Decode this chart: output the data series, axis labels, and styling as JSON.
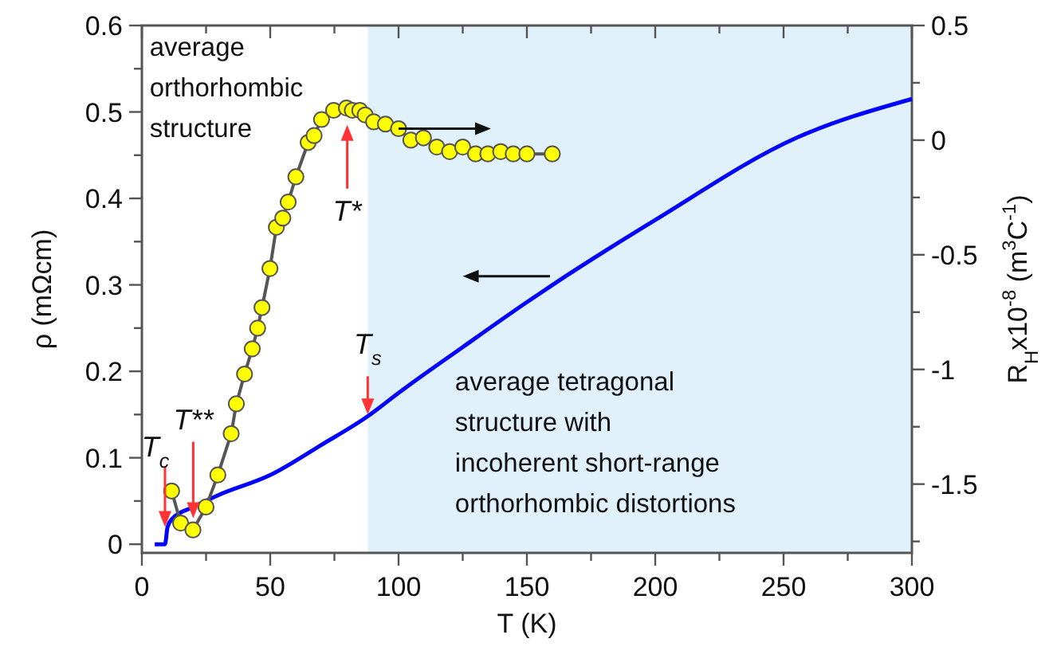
{
  "chart_data": {
    "type": "line",
    "xlabel": "T (K)",
    "ylabel": "ρ (mΩcm)",
    "y2label": "R$_{H}$x10$^{-8}$ (m$^{3}$C$^{-1}$)",
    "xlim": [
      0,
      300
    ],
    "xticks": [
      0,
      {
        "value": 25,
        "label": null
      },
      50,
      {
        "value": 75,
        "label": null
      },
      100,
      {
        "value": 125,
        "label": null
      },
      150,
      {
        "value": 175,
        "label": null
      },
      200,
      {
        "value": 225,
        "label": null
      },
      250,
      {
        "value": 275,
        "label": null
      },
      300
    ],
    "ylim": [
      -0.01,
      0.6
    ],
    "yticks": [
      0,
      {
        "value": 0.05,
        "label": null
      },
      0.1,
      {
        "value": 0.15,
        "label": null
      },
      0.2,
      {
        "value": 0.25,
        "label": null
      },
      0.3,
      {
        "value": 0.35,
        "label": null
      },
      0.4,
      {
        "value": 0.45,
        "label": null
      },
      0.5,
      {
        "value": 0.55,
        "label": null
      },
      0.6
    ],
    "y2lim": [
      -1.8,
      0.5
    ],
    "y2ticks": [
      {
        "value": -1.75,
        "label": null
      },
      -1.5,
      {
        "value": -1.25,
        "label": null
      },
      -1,
      {
        "value": -0.75,
        "label": null
      },
      -0.5,
      {
        "value": -0.25,
        "label": null
      },
      0,
      {
        "value": 0.25,
        "label": null
      },
      0.5
    ],
    "grid": false,
    "series": [
      {
        "color": "#0000ff",
        "marker": "none",
        "x": [
          5,
          9,
          10,
          12,
          20,
          30,
          50,
          70,
          88,
          100,
          125,
          150,
          160,
          200,
          255,
          300
        ],
        "values": [
          0,
          0,
          0.02,
          0.03,
          0.043,
          0.057,
          0.08,
          0.115,
          0.148,
          0.175,
          0.228,
          0.28,
          0.3,
          0.375,
          0.47,
          0.515
        ]
      },
      {
        "axis": "y2",
        "color": "#ffff00",
        "marker": "circle",
        "x": [
          11.6,
          15.1,
          19.9,
          25,
          29.6,
          34.8,
          36.8,
          40,
          43,
          45.1,
          46.8,
          49.9,
          52.4,
          54.9,
          57,
          60,
          64.8,
          67.1,
          70,
          74.7,
          79.7,
          82,
          84.9,
          87,
          90.3,
          94.9,
          100,
          104.8,
          109.7,
          114.9,
          119.9,
          125,
          130,
          134.8,
          139.8,
          144.7,
          150,
          159.9
        ],
        "values": [
          -1.53,
          -1.67,
          -1.7,
          -1.6,
          -1.46,
          -1.28,
          -1.15,
          -1.02,
          -0.91,
          -0.82,
          -0.73,
          -0.56,
          -0.38,
          -0.34,
          -0.27,
          -0.16,
          -0.01,
          0.02,
          0.09,
          0.13,
          0.14,
          0.13,
          0.13,
          0.11,
          0.08,
          0.07,
          0.05,
          0,
          0.01,
          -0.03,
          -0.05,
          -0.03,
          -0.06,
          -0.06,
          -0.05,
          -0.06,
          -0.06,
          -0.06
        ]
      }
    ],
    "bands": [
      {
        "axis": "x",
        "from": 88,
        "to": 300,
        "color": "#e1f1fc"
      }
    ],
    "annotations": [
      "average orthorhombic structure",
      "average tetragonal structure with incoherent short-range orthorhombic distortions",
      {
        "text": "T$_{c}$",
        "x": 9,
        "y": 0.02
      },
      {
        "text": "T**",
        "x": 20,
        "y": 0.03
      },
      {
        "text": "T$_{s}$",
        "x": 88,
        "y": 0.15
      },
      {
        "text": "T*",
        "x": 80,
        "y": 0.485
      }
    ]
  }
}
